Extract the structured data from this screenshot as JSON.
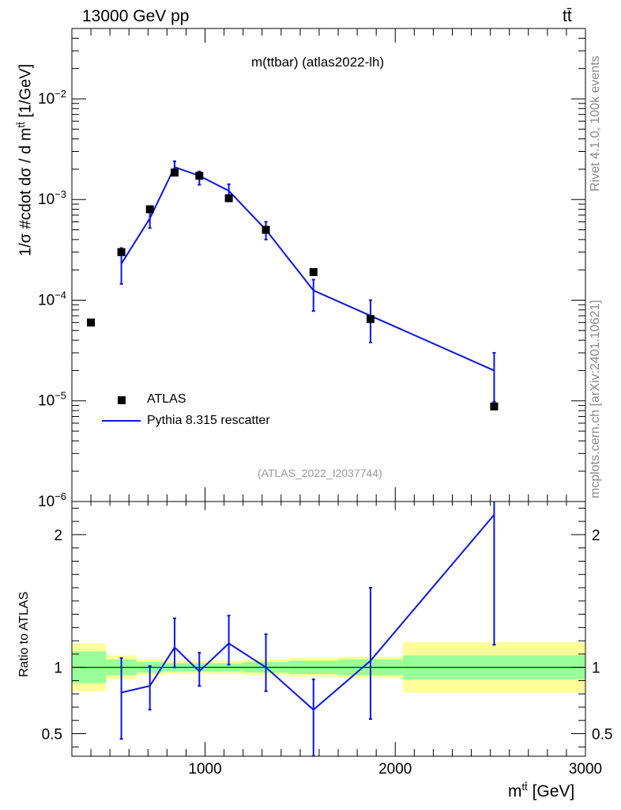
{
  "header": {
    "energy_label": "13000 GeV pp",
    "process_label": "tt̄"
  },
  "side_labels": {
    "rivet": "Rivet 4.1.0,  100k events",
    "mcplots": "mcplots.cern.ch [arXiv:2401.10621]"
  },
  "chart_data": [
    {
      "type": "scatter",
      "panel": "main",
      "title": "m(ttbar) (atlas2022-lh)",
      "watermark": "(ATLAS_2022_I2037744)",
      "ylabel": "1/σ #cdot dσ / d m^{tt̄} [1/GeV]",
      "yscale": "log",
      "ylim": [
        1e-06,
        0.05
      ],
      "xlim": [
        300,
        3000
      ],
      "y_ticks": [
        {
          "value": 1e-06,
          "exp": "−6"
        },
        {
          "value": 1e-05,
          "exp": "−5"
        },
        {
          "value": 0.0001,
          "exp": "−4"
        },
        {
          "value": 0.001,
          "exp": "−3"
        },
        {
          "value": 0.01,
          "exp": "−2"
        }
      ],
      "legend": {
        "position": "bottom-left",
        "data_label": "ATLAS",
        "mc_label": "Pythia 8.315 rescatter"
      },
      "data": {
        "name": "ATLAS",
        "x": [
          400,
          560,
          710,
          840,
          970,
          1125,
          1320,
          1570,
          1870,
          2520
        ],
        "y": [
          6e-05,
          0.0003,
          0.0008,
          0.00185,
          0.00172,
          0.00103,
          0.0005,
          0.00019,
          6.5e-05,
          8.8e-06
        ],
        "x_low": [
          300,
          480,
          640,
          780,
          900,
          1040,
          1200,
          1440,
          1700,
          2040
        ],
        "x_high": [
          480,
          640,
          780,
          900,
          1040,
          1200,
          1440,
          1700,
          2040,
          3000
        ],
        "band_inner": [
          0.12,
          0.06,
          0.04,
          0.03,
          0.03,
          0.03,
          0.04,
          0.05,
          0.06,
          0.09
        ],
        "band_outer": [
          0.18,
          0.09,
          0.06,
          0.05,
          0.05,
          0.05,
          0.06,
          0.07,
          0.08,
          0.19
        ]
      },
      "mc": {
        "name": "Pythia 8.315 rescatter",
        "x": [
          560,
          710,
          840,
          970,
          1125,
          1320,
          1570,
          1870,
          2520
        ],
        "y": [
          0.00023,
          0.00065,
          0.0021,
          0.00172,
          0.00122,
          0.0005,
          0.000125,
          7e-05,
          2e-05
        ],
        "y_low": [
          0.000145,
          0.00052,
          0.0018,
          0.0014,
          0.00105,
          0.0004,
          7.8e-05,
          3.8e-05,
          9.8e-06
        ],
        "y_high": [
          0.00033,
          0.00078,
          0.0024,
          0.0019,
          0.00142,
          0.0006,
          0.00016,
          0.0001,
          3e-05
        ]
      }
    },
    {
      "type": "line",
      "panel": "ratio",
      "ylabel": "Ratio to ATLAS",
      "xlabel": "m^{tt̄} [GeV]",
      "ylim": [
        0.33,
        2.25
      ],
      "xlim": [
        300,
        3000
      ],
      "y_ticks": [
        0.5,
        1,
        2
      ],
      "y_tick_labels": [
        "0.5",
        "1",
        "2"
      ],
      "x_ticks": [
        1000,
        2000,
        3000
      ],
      "x_tick_labels": [
        "1000",
        "2000",
        "3000"
      ],
      "mc": {
        "x": [
          560,
          710,
          840,
          970,
          1125,
          1320,
          1570,
          1870,
          2520
        ],
        "y": [
          0.81,
          0.86,
          1.15,
          0.97,
          1.18,
          1.0,
          0.68,
          1.05,
          2.15
        ],
        "y_low": [
          0.46,
          0.68,
          1.0,
          0.86,
          1.02,
          0.82,
          0.33,
          0.61,
          1.17
        ],
        "y_high": [
          1.07,
          1.01,
          1.37,
          1.11,
          1.39,
          1.25,
          0.91,
          1.6,
          2.3
        ]
      }
    }
  ],
  "colors": {
    "mc_line": "#0a14e6",
    "data_marker": "#000000",
    "band_inner": "#99ff99",
    "band_outer": "#ffff99",
    "side_text": "#888888",
    "watermark": "#999999"
  }
}
